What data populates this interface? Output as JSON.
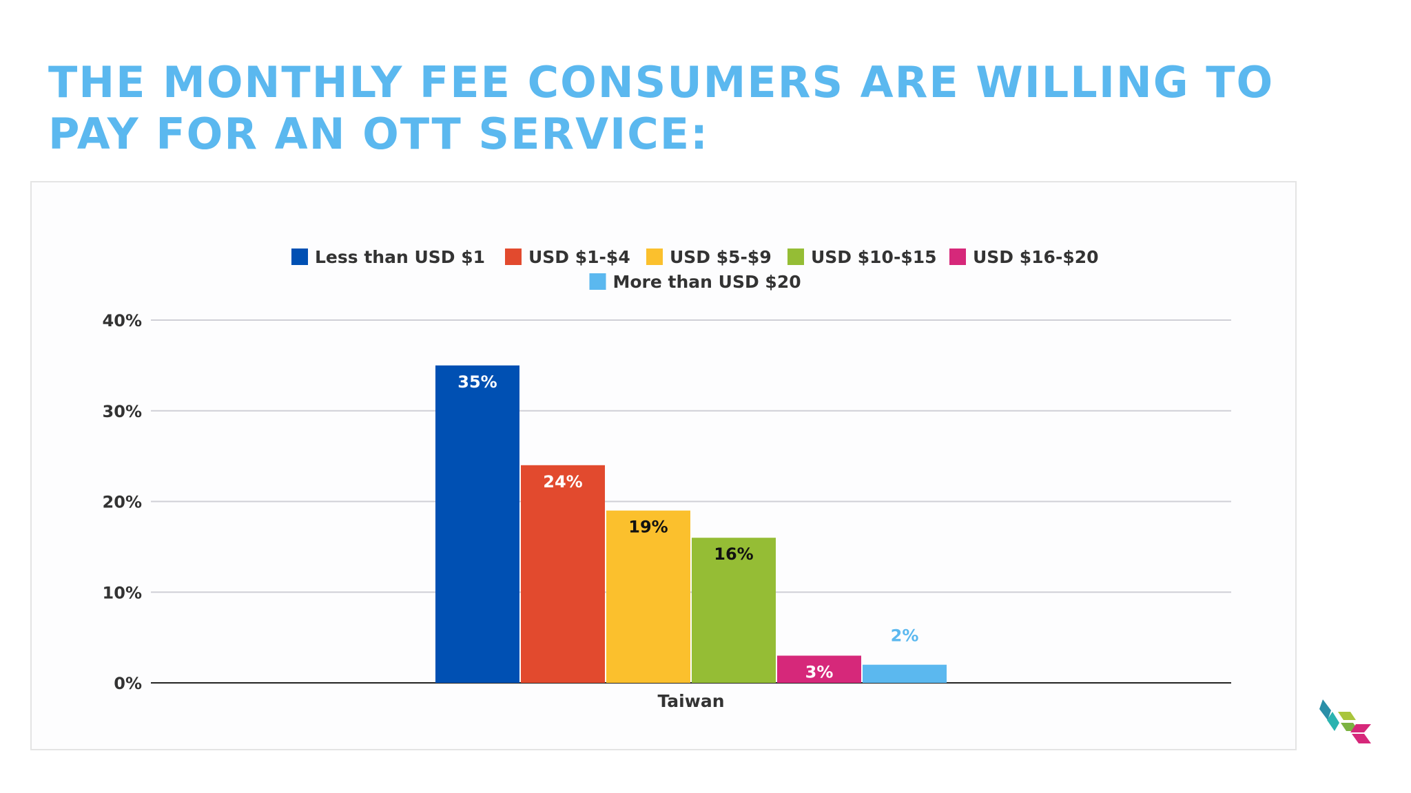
{
  "slide": {
    "title_line1": "THE MONTHLY FEE CONSUMERS ARE WILLING TO",
    "title_line2": "PAY FOR AN OTT SERVICE:"
  },
  "colors": {
    "title": "#5bb8ef",
    "axis_text": "#333333",
    "grid": "#cfcfd6",
    "baseline": "#222222"
  },
  "chart_data": {
    "type": "bar",
    "categories": [
      "Taiwan"
    ],
    "series": [
      {
        "name": "Less than USD $1",
        "values": [
          35
        ],
        "label": "35%",
        "color": "#0050b3",
        "label_color": "#ffffff",
        "label_position": "inside"
      },
      {
        "name": "USD $1-$4",
        "values": [
          24
        ],
        "label": "24%",
        "color": "#e24a2e",
        "label_color": "#ffffff",
        "label_position": "inside"
      },
      {
        "name": "USD $5-$9",
        "values": [
          19
        ],
        "label": "19%",
        "color": "#fbc02d",
        "label_color": "#111111",
        "label_position": "inside"
      },
      {
        "name": "USD $10-$15",
        "values": [
          16
        ],
        "label": "16%",
        "color": "#95bd35",
        "label_color": "#111111",
        "label_position": "inside"
      },
      {
        "name": "USD $16-$20",
        "values": [
          3
        ],
        "label": "3%",
        "color": "#d6287a",
        "label_color": "#ffffff",
        "label_position": "inside"
      },
      {
        "name": "More than USD $20",
        "values": [
          2
        ],
        "label": "2%",
        "color": "#5bb8ef",
        "label_color": "#5bb8ef",
        "label_position": "above"
      }
    ],
    "yticks": [
      "0%",
      "10%",
      "20%",
      "30%",
      "40%"
    ],
    "ylim": [
      0,
      40
    ],
    "grid": true,
    "legend_position": "top-center"
  }
}
